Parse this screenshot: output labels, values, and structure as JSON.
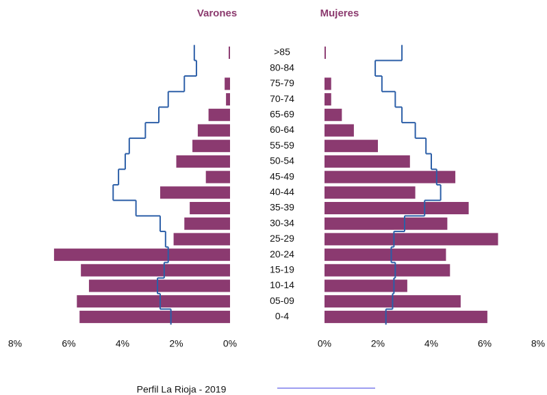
{
  "chart_data": {
    "type": "pyramid",
    "categories": [
      ">85",
      "80-84",
      "75-79",
      "70-74",
      "65-69",
      "60-64",
      "55-59",
      "50-54",
      "45-49",
      "40-44",
      "35-39",
      "30-34",
      "25-29",
      "20-24",
      "15-19",
      "10-14",
      "05-09",
      "0-4"
    ],
    "series": [
      {
        "name": "Varones",
        "color": "#8b3a70",
        "side": "left",
        "values": [
          0.05,
          0,
          0.2,
          0.15,
          0.8,
          1.2,
          1.4,
          2.0,
          0.9,
          2.6,
          1.5,
          1.7,
          2.1,
          6.55,
          5.55,
          5.25,
          5.7,
          5.6
        ]
      },
      {
        "name": "Mujeres",
        "color": "#8b3a70",
        "side": "right",
        "values": [
          0.05,
          0,
          0.25,
          0.25,
          0.65,
          1.1,
          2.0,
          3.2,
          4.9,
          3.4,
          5.4,
          4.6,
          6.5,
          4.55,
          4.7,
          3.1,
          5.1,
          6.1
        ]
      }
    ],
    "profile": {
      "name": "Perfil La Rioja - 2019",
      "color": "#2b5ea7",
      "legend_color": "#9c9cf0",
      "left": [
        1.33,
        1.25,
        1.7,
        2.3,
        2.65,
        3.15,
        3.75,
        3.9,
        4.15,
        4.35,
        3.5,
        2.6,
        2.4,
        2.3,
        2.45,
        2.7,
        2.6,
        2.2
      ],
      "right": [
        2.9,
        1.9,
        2.15,
        2.65,
        2.9,
        3.4,
        3.8,
        4.0,
        4.2,
        4.35,
        3.75,
        3.0,
        2.6,
        2.5,
        2.65,
        2.6,
        2.55,
        2.3
      ]
    },
    "xlim": [
      0,
      8
    ],
    "xticks": [
      {
        "value": 0,
        "label": "0%"
      },
      {
        "value": 2,
        "label": "2%"
      },
      {
        "value": 4,
        "label": "4%"
      },
      {
        "value": 6,
        "label": "6%"
      },
      {
        "value": 8,
        "label": "8%"
      }
    ]
  }
}
